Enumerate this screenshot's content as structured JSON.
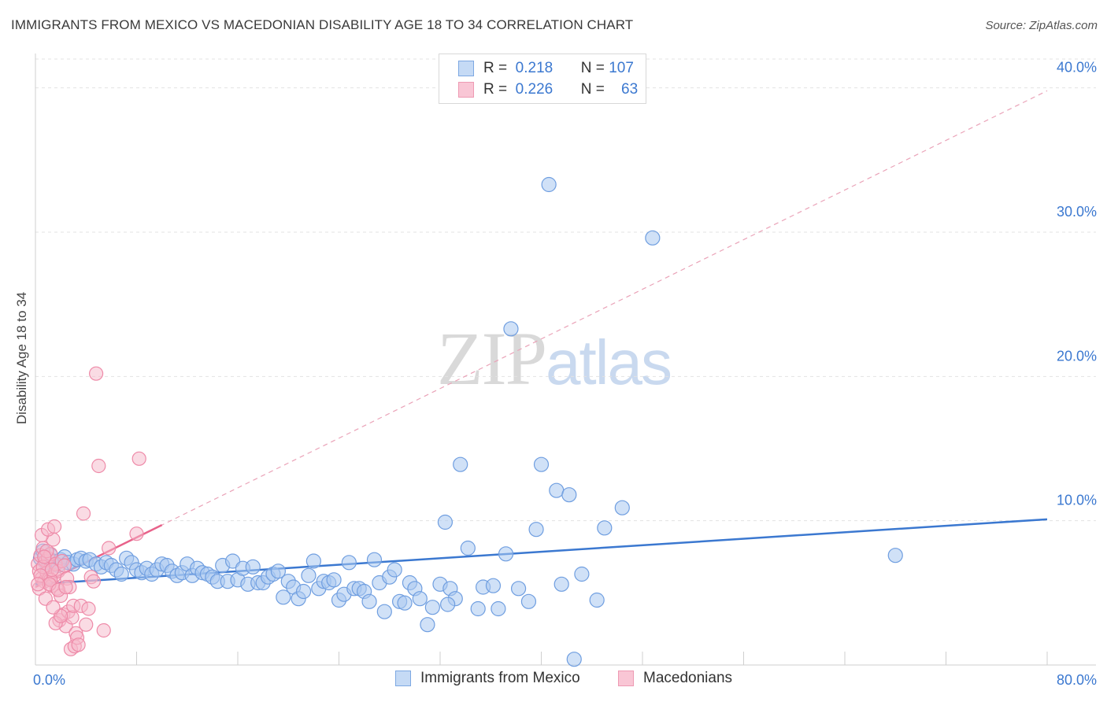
{
  "header": {
    "title": "IMMIGRANTS FROM MEXICO VS MACEDONIAN DISABILITY AGE 18 TO 34 CORRELATION CHART",
    "source": "Source: ZipAtlas.com"
  },
  "watermark": {
    "zip": "ZIP",
    "atlas": "atlas"
  },
  "legend_top": {
    "rows": [
      {
        "r_label": "R =",
        "r_value": "0.218",
        "n_label": "N =",
        "n_value": "107"
      },
      {
        "r_label": "R =",
        "r_value": "0.226",
        "n_label": "N =",
        "n_value": "63"
      }
    ]
  },
  "colors": {
    "mexico_fill": "#a9c8f0",
    "mexico_stroke": "#6f9ee0",
    "mexico_line": "#3b78d0",
    "mac_fill": "#f6b7c9",
    "mac_stroke": "#ee8aa8",
    "mac_line": "#e8628a",
    "grid": "#e3e3e3",
    "axis_text": "#3b78d0"
  },
  "chart_data": {
    "type": "scatter",
    "title": "IMMIGRANTS FROM MEXICO VS MACEDONIAN DISABILITY AGE 18 TO 34 CORRELATION CHART",
    "xlabel": "",
    "ylabel": "Disability Age 18 to 34",
    "xlim": [
      0,
      80
    ],
    "ylim": [
      0,
      42
    ],
    "x_tick_labels": [
      "0.0%",
      "80.0%"
    ],
    "y_ticks": [
      10,
      20,
      30,
      40
    ],
    "y_tick_labels": [
      "10.0%",
      "20.0%",
      "30.0%",
      "40.0%"
    ],
    "grid": true,
    "legend_position": "bottom",
    "series": [
      {
        "name": "Immigrants from Mexico",
        "r": 0.218,
        "n": 107,
        "trend": {
          "x": [
            0,
            80
          ],
          "y": [
            5.6,
            10.1
          ]
        },
        "points": [
          [
            0.4,
            7.4
          ],
          [
            0.6,
            7.9
          ],
          [
            0.8,
            7.1
          ],
          [
            1.0,
            6.8
          ],
          [
            1.2,
            7.6
          ],
          [
            1.4,
            7.2
          ],
          [
            1.6,
            7.0
          ],
          [
            1.8,
            6.9
          ],
          [
            2.0,
            7.3
          ],
          [
            2.3,
            7.5
          ],
          [
            2.6,
            7.1
          ],
          [
            3.0,
            7.0
          ],
          [
            3.3,
            7.3
          ],
          [
            3.6,
            7.4
          ],
          [
            4.0,
            7.2
          ],
          [
            4.3,
            7.3
          ],
          [
            4.8,
            7.0
          ],
          [
            5.2,
            6.8
          ],
          [
            5.6,
            7.1
          ],
          [
            6.0,
            6.9
          ],
          [
            6.4,
            6.6
          ],
          [
            6.8,
            6.3
          ],
          [
            7.2,
            7.4
          ],
          [
            7.6,
            7.1
          ],
          [
            8.0,
            6.6
          ],
          [
            8.4,
            6.4
          ],
          [
            8.8,
            6.7
          ],
          [
            9.2,
            6.3
          ],
          [
            9.6,
            6.6
          ],
          [
            10.0,
            7.0
          ],
          [
            10.4,
            6.9
          ],
          [
            10.8,
            6.5
          ],
          [
            11.2,
            6.2
          ],
          [
            11.6,
            6.4
          ],
          [
            12.0,
            7.0
          ],
          [
            12.4,
            6.2
          ],
          [
            12.8,
            6.7
          ],
          [
            13.2,
            6.4
          ],
          [
            13.6,
            6.3
          ],
          [
            14.0,
            6.1
          ],
          [
            14.4,
            5.8
          ],
          [
            14.8,
            6.9
          ],
          [
            15.2,
            5.8
          ],
          [
            15.6,
            7.2
          ],
          [
            16.0,
            5.9
          ],
          [
            16.4,
            6.7
          ],
          [
            16.8,
            5.6
          ],
          [
            17.2,
            6.8
          ],
          [
            17.6,
            5.7
          ],
          [
            18.0,
            5.7
          ],
          [
            18.4,
            6.1
          ],
          [
            18.8,
            6.3
          ],
          [
            19.2,
            6.5
          ],
          [
            19.6,
            4.7
          ],
          [
            20.0,
            5.8
          ],
          [
            20.4,
            5.4
          ],
          [
            20.8,
            4.6
          ],
          [
            21.2,
            5.1
          ],
          [
            21.6,
            6.2
          ],
          [
            22.0,
            7.2
          ],
          [
            22.4,
            5.3
          ],
          [
            22.8,
            5.8
          ],
          [
            23.2,
            5.7
          ],
          [
            23.6,
            5.9
          ],
          [
            24.0,
            4.5
          ],
          [
            24.4,
            4.9
          ],
          [
            24.8,
            7.1
          ],
          [
            25.2,
            5.3
          ],
          [
            25.6,
            5.3
          ],
          [
            26.0,
            5.1
          ],
          [
            26.4,
            4.4
          ],
          [
            26.8,
            7.3
          ],
          [
            27.2,
            5.7
          ],
          [
            27.6,
            3.7
          ],
          [
            28.0,
            6.1
          ],
          [
            28.4,
            6.6
          ],
          [
            28.8,
            4.4
          ],
          [
            29.2,
            4.3
          ],
          [
            29.6,
            5.7
          ],
          [
            30.0,
            5.3
          ],
          [
            30.4,
            4.6
          ],
          [
            31.0,
            2.8
          ],
          [
            31.4,
            4.0
          ],
          [
            32.0,
            5.6
          ],
          [
            32.4,
            9.9
          ],
          [
            32.8,
            5.3
          ],
          [
            33.2,
            4.6
          ],
          [
            33.6,
            13.9
          ],
          [
            34.2,
            8.1
          ],
          [
            35.0,
            3.9
          ],
          [
            35.4,
            5.4
          ],
          [
            36.2,
            5.5
          ],
          [
            36.6,
            3.9
          ],
          [
            37.2,
            7.7
          ],
          [
            37.6,
            23.3
          ],
          [
            38.2,
            5.3
          ],
          [
            39.0,
            4.4
          ],
          [
            39.6,
            9.4
          ],
          [
            40.0,
            13.9
          ],
          [
            40.6,
            33.3
          ],
          [
            41.2,
            12.1
          ],
          [
            41.6,
            5.6
          ],
          [
            42.2,
            11.8
          ],
          [
            43.2,
            6.3
          ],
          [
            44.4,
            4.5
          ],
          [
            45.0,
            9.5
          ],
          [
            46.4,
            10.9
          ],
          [
            48.8,
            29.6
          ],
          [
            68.0,
            7.6
          ],
          [
            32.6,
            4.2
          ],
          [
            42.6,
            0.4
          ]
        ]
      },
      {
        "name": "Macedonians",
        "r": 0.226,
        "n": 63,
        "trend": {
          "x": [
            0,
            10
          ],
          "y": [
            5.4,
            9.7
          ]
        },
        "points": [
          [
            0.2,
            7.0
          ],
          [
            0.3,
            6.5
          ],
          [
            0.4,
            7.6
          ],
          [
            0.5,
            6.0
          ],
          [
            0.6,
            8.1
          ],
          [
            0.7,
            5.8
          ],
          [
            0.8,
            7.2
          ],
          [
            0.9,
            6.4
          ],
          [
            1.0,
            7.4
          ],
          [
            1.1,
            6.0
          ],
          [
            1.2,
            7.7
          ],
          [
            1.3,
            5.5
          ],
          [
            1.4,
            8.7
          ],
          [
            1.5,
            6.2
          ],
          [
            1.6,
            7.0
          ],
          [
            1.7,
            5.3
          ],
          [
            1.8,
            6.5
          ],
          [
            1.9,
            3.1
          ],
          [
            2.0,
            4.8
          ],
          [
            2.1,
            7.2
          ],
          [
            2.2,
            3.5
          ],
          [
            2.3,
            6.9
          ],
          [
            2.4,
            2.7
          ],
          [
            2.5,
            6.0
          ],
          [
            2.6,
            3.7
          ],
          [
            2.7,
            5.4
          ],
          [
            2.8,
            1.1
          ],
          [
            2.9,
            3.3
          ],
          [
            3.0,
            4.1
          ],
          [
            3.1,
            1.3
          ],
          [
            3.2,
            2.2
          ],
          [
            3.3,
            1.9
          ],
          [
            3.4,
            1.4
          ],
          [
            3.6,
            4.1
          ],
          [
            3.8,
            10.5
          ],
          [
            4.0,
            2.8
          ],
          [
            4.2,
            3.9
          ],
          [
            4.4,
            6.1
          ],
          [
            4.6,
            5.8
          ],
          [
            4.8,
            20.2
          ],
          [
            5.0,
            13.8
          ],
          [
            5.4,
            2.4
          ],
          [
            5.8,
            8.1
          ],
          [
            8.2,
            14.3
          ],
          [
            8.0,
            9.1
          ],
          [
            0.5,
            9.0
          ],
          [
            1.0,
            9.4
          ],
          [
            1.5,
            9.6
          ],
          [
            0.3,
            5.3
          ],
          [
            0.8,
            4.6
          ],
          [
            1.2,
            5.9
          ],
          [
            1.6,
            2.9
          ],
          [
            2.0,
            3.4
          ],
          [
            0.6,
            6.8
          ],
          [
            0.9,
            7.9
          ],
          [
            1.3,
            6.6
          ],
          [
            0.4,
            6.2
          ],
          [
            0.7,
            7.5
          ],
          [
            1.1,
            5.6
          ],
          [
            1.4,
            4.0
          ],
          [
            1.8,
            5.2
          ],
          [
            2.4,
            5.4
          ],
          [
            0.2,
            5.6
          ]
        ]
      }
    ]
  },
  "bottom_legend": {
    "items": [
      {
        "label": "Immigrants from Mexico"
      },
      {
        "label": "Macedonians"
      }
    ]
  }
}
